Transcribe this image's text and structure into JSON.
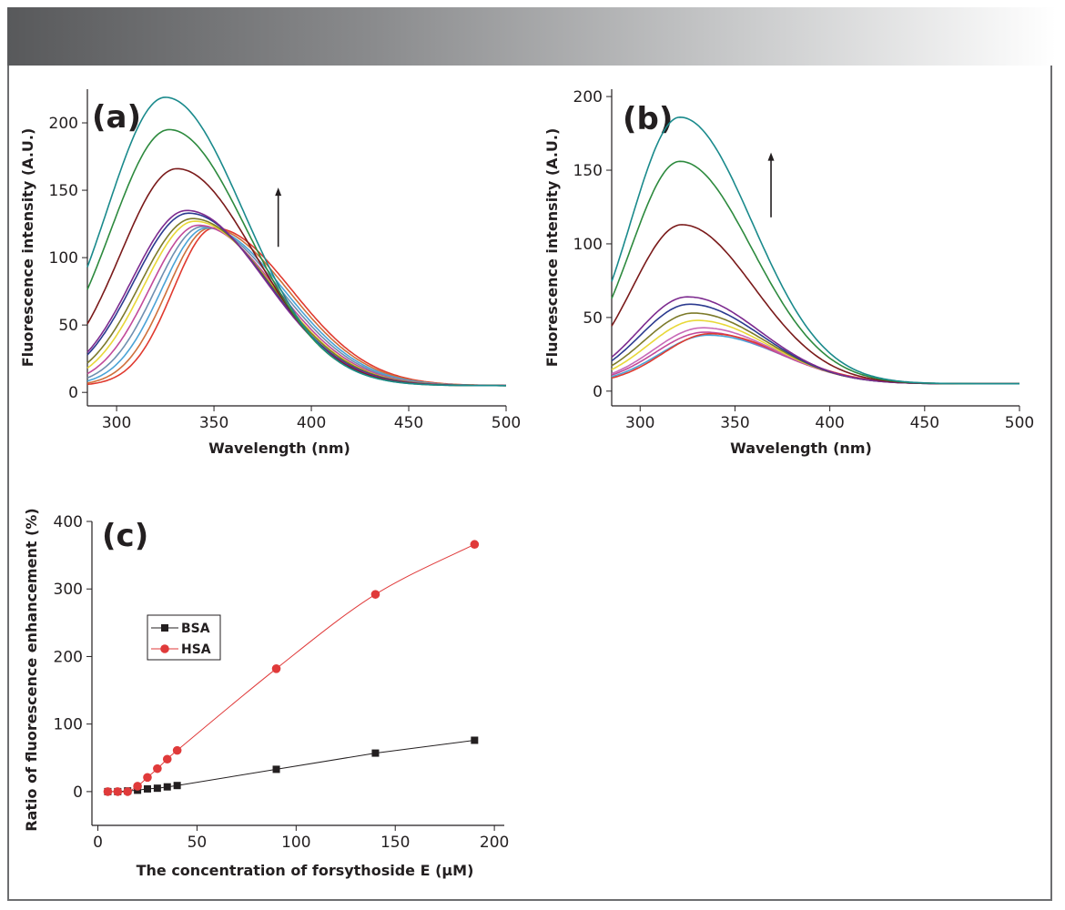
{
  "chart_data": [
    {
      "type": "line",
      "panel_label": "(a)",
      "xlabel": "Wavelength (nm)",
      "ylabel": "Fluorescence intensity (A.U.)",
      "xlim": [
        285,
        500
      ],
      "ylim": [
        -10,
        225
      ],
      "xticks": [
        300,
        350,
        400,
        450,
        500
      ],
      "yticks": [
        0,
        50,
        100,
        150,
        200
      ],
      "base": 5,
      "tail_sigma": 40,
      "series": [
        {
          "color": "#e03a2f",
          "peak": 122,
          "center": 350,
          "sigma_left": 21
        },
        {
          "color": "#cf6f3a",
          "peak": 122,
          "center": 348,
          "sigma_left": 22
        },
        {
          "color": "#4aa3d6",
          "peak": 122,
          "center": 346,
          "sigma_left": 23
        },
        {
          "color": "#6e8fb0",
          "peak": 123,
          "center": 344,
          "sigma_left": 24
        },
        {
          "color": "#c24a9a",
          "peak": 124,
          "center": 342,
          "sigma_left": 25
        },
        {
          "color": "#e8d838",
          "peak": 127,
          "center": 340,
          "sigma_left": 26
        },
        {
          "color": "#7c7a2a",
          "peak": 129,
          "center": 339,
          "sigma_left": 27
        },
        {
          "color": "#2b3a8f",
          "peak": 133,
          "center": 337,
          "sigma_left": 28
        },
        {
          "color": "#7d2b8f",
          "peak": 135,
          "center": 336,
          "sigma_left": 28
        },
        {
          "color": "#7a1a1a",
          "peak": 166,
          "center": 331,
          "sigma_left": 29
        },
        {
          "color": "#2d8a3e",
          "peak": 195,
          "center": 327,
          "sigma_left": 30
        },
        {
          "color": "#1a8a8c",
          "peak": 219,
          "center": 325,
          "sigma_left": 30
        }
      ],
      "arrow": {
        "x": 383,
        "from": 108,
        "to": 152
      }
    },
    {
      "type": "line",
      "panel_label": "(b)",
      "xlabel": "Wavelength (nm)",
      "ylabel": "Fluorescence intensity (A.U.)",
      "xlim": [
        285,
        500
      ],
      "ylim": [
        -10,
        205
      ],
      "xticks": [
        300,
        350,
        400,
        450,
        500
      ],
      "yticks": [
        0,
        50,
        100,
        150,
        200
      ],
      "base": 5,
      "tail_sigma": 38,
      "series": [
        {
          "color": "#4aa3d6",
          "peak": 38,
          "center": 336,
          "sigma_left": 26
        },
        {
          "color": "#c24a9a",
          "peak": 40,
          "center": 334,
          "sigma_left": 26
        },
        {
          "color": "#e03a2f",
          "peak": 39,
          "center": 337,
          "sigma_left": 25
        },
        {
          "color": "#c86ab8",
          "peak": 43,
          "center": 333,
          "sigma_left": 26
        },
        {
          "color": "#e8d838",
          "peak": 48,
          "center": 330,
          "sigma_left": 26
        },
        {
          "color": "#7c7a2a",
          "peak": 53,
          "center": 328,
          "sigma_left": 26
        },
        {
          "color": "#2b3a8f",
          "peak": 59,
          "center": 326,
          "sigma_left": 26
        },
        {
          "color": "#7d2b8f",
          "peak": 64,
          "center": 325,
          "sigma_left": 26
        },
        {
          "color": "#7a1a1a",
          "peak": 113,
          "center": 322,
          "sigma_left": 26
        },
        {
          "color": "#2d8a3e",
          "peak": 156,
          "center": 321,
          "sigma_left": 26
        },
        {
          "color": "#1a8a8c",
          "peak": 186,
          "center": 321,
          "sigma_left": 26
        }
      ],
      "arrow": {
        "x": 369,
        "from": 118,
        "to": 162
      }
    },
    {
      "type": "scatter",
      "panel_label": "(c)",
      "xlabel": "The concentration of forsythoside E (μM)",
      "ylabel": "Ratio of fluorescence enhancement (%)",
      "xlim": [
        -3,
        205
      ],
      "ylim": [
        -50,
        400
      ],
      "xticks": [
        0,
        50,
        100,
        150,
        200
      ],
      "yticks": [
        0,
        100,
        200,
        300,
        400
      ],
      "legend_position": "left",
      "series": [
        {
          "name": "BSA",
          "color": "#231f20",
          "marker": "square",
          "x": [
            5,
            10,
            15,
            20,
            25,
            30,
            35,
            40,
            90,
            140,
            190
          ],
          "y": [
            0,
            0,
            1,
            2,
            4,
            5,
            7,
            9,
            33,
            57,
            76
          ]
        },
        {
          "name": "HSA",
          "color": "#e03a3a",
          "marker": "circle",
          "x": [
            5,
            10,
            15,
            20,
            25,
            30,
            35,
            40,
            90,
            140,
            190
          ],
          "y": [
            0,
            0,
            0,
            8,
            21,
            34,
            48,
            61,
            182,
            292,
            366
          ]
        }
      ]
    }
  ]
}
